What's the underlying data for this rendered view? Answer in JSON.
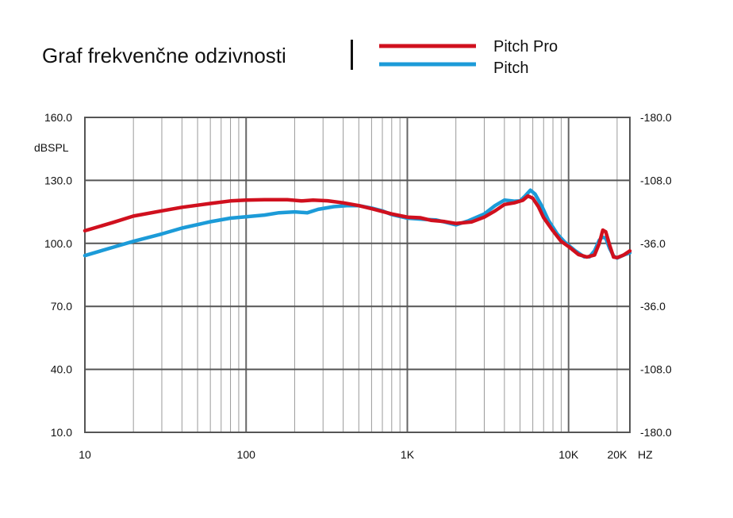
{
  "chart_data": {
    "type": "line",
    "title": "Graf frekvenčne odzivnosti",
    "ylabel": "dBSPL",
    "x_scale": "log",
    "xlim": [
      10,
      24000
    ],
    "ylim": [
      10,
      160
    ],
    "y_ticks": [
      "160.0",
      "130.0",
      "100.0",
      "70.0",
      "40.0",
      "10.0"
    ],
    "y2_ticks": [
      "-180.0",
      "-108.0",
      "-36.0",
      "-36.0",
      "-108.0",
      "-180.0"
    ],
    "x_ticks": [
      {
        "value": 10,
        "label": "10"
      },
      {
        "value": 100,
        "label": "100"
      },
      {
        "value": 1000,
        "label": "1K"
      },
      {
        "value": 10000,
        "label": "10K"
      },
      {
        "value": 20000,
        "label": "20K"
      }
    ],
    "x_unit": "HZ",
    "grid": true,
    "legend_position": "top-right",
    "series": [
      {
        "name": "Pitch Pro",
        "color": "#d0101e",
        "points": [
          [
            10,
            106
          ],
          [
            15,
            110
          ],
          [
            20,
            113
          ],
          [
            30,
            115.5
          ],
          [
            40,
            117.2
          ],
          [
            60,
            119
          ],
          [
            80,
            120.2
          ],
          [
            100,
            120.6
          ],
          [
            130,
            120.8
          ],
          [
            180,
            120.8
          ],
          [
            220,
            120.2
          ],
          [
            260,
            120.6
          ],
          [
            320,
            120.3
          ],
          [
            400,
            119.3
          ],
          [
            500,
            118
          ],
          [
            600,
            116.5
          ],
          [
            800,
            114
          ],
          [
            1000,
            112.5
          ],
          [
            1200,
            112.2
          ],
          [
            1400,
            111
          ],
          [
            1700,
            110.4
          ],
          [
            2000,
            109.5
          ],
          [
            2500,
            110.2
          ],
          [
            3000,
            112.5
          ],
          [
            3500,
            115.5
          ],
          [
            4000,
            118.5
          ],
          [
            4600,
            119.3
          ],
          [
            5200,
            120.5
          ],
          [
            5600,
            122.6
          ],
          [
            6000,
            121.5
          ],
          [
            6500,
            117.5
          ],
          [
            7000,
            112.3
          ],
          [
            8000,
            106
          ],
          [
            9000,
            101
          ],
          [
            10000,
            98.5
          ],
          [
            11500,
            94.7
          ],
          [
            13000,
            93.5
          ],
          [
            14500,
            94.5
          ],
          [
            15500,
            100
          ],
          [
            16300,
            106.3
          ],
          [
            17000,
            105.5
          ],
          [
            18000,
            99
          ],
          [
            19000,
            93.5
          ],
          [
            20000,
            93.2
          ],
          [
            22000,
            94.5
          ],
          [
            24000,
            96.4
          ]
        ]
      },
      {
        "name": "Pitch",
        "color": "#1c9bd8",
        "points": [
          [
            10,
            94.2
          ],
          [
            15,
            98.2
          ],
          [
            20,
            101
          ],
          [
            30,
            104.5
          ],
          [
            40,
            107.3
          ],
          [
            60,
            110.3
          ],
          [
            80,
            112
          ],
          [
            100,
            112.7
          ],
          [
            130,
            113.5
          ],
          [
            160,
            114.6
          ],
          [
            200,
            115
          ],
          [
            240,
            114.6
          ],
          [
            280,
            116.2
          ],
          [
            350,
            117.5
          ],
          [
            420,
            118
          ],
          [
            500,
            118
          ],
          [
            600,
            116.8
          ],
          [
            700,
            115.5
          ],
          [
            800,
            113.7
          ],
          [
            1000,
            112
          ],
          [
            1300,
            111.4
          ],
          [
            1500,
            111.2
          ],
          [
            1700,
            110.2
          ],
          [
            2000,
            108.8
          ],
          [
            2400,
            110.8
          ],
          [
            3000,
            114
          ],
          [
            3500,
            118
          ],
          [
            4000,
            120.6
          ],
          [
            4600,
            120.1
          ],
          [
            5000,
            120.2
          ],
          [
            5400,
            122.7
          ],
          [
            5800,
            125.3
          ],
          [
            6200,
            123.5
          ],
          [
            6800,
            118
          ],
          [
            7500,
            111
          ],
          [
            8500,
            104.5
          ],
          [
            9500,
            100.5
          ],
          [
            11000,
            96.5
          ],
          [
            12500,
            93.6
          ],
          [
            13500,
            93.6
          ],
          [
            14500,
            96.5
          ],
          [
            15500,
            101.5
          ],
          [
            16200,
            103
          ],
          [
            17000,
            102.5
          ],
          [
            18000,
            97.5
          ],
          [
            19000,
            94
          ],
          [
            20000,
            93
          ],
          [
            22000,
            94.5
          ],
          [
            24000,
            95.5
          ]
        ]
      }
    ]
  }
}
